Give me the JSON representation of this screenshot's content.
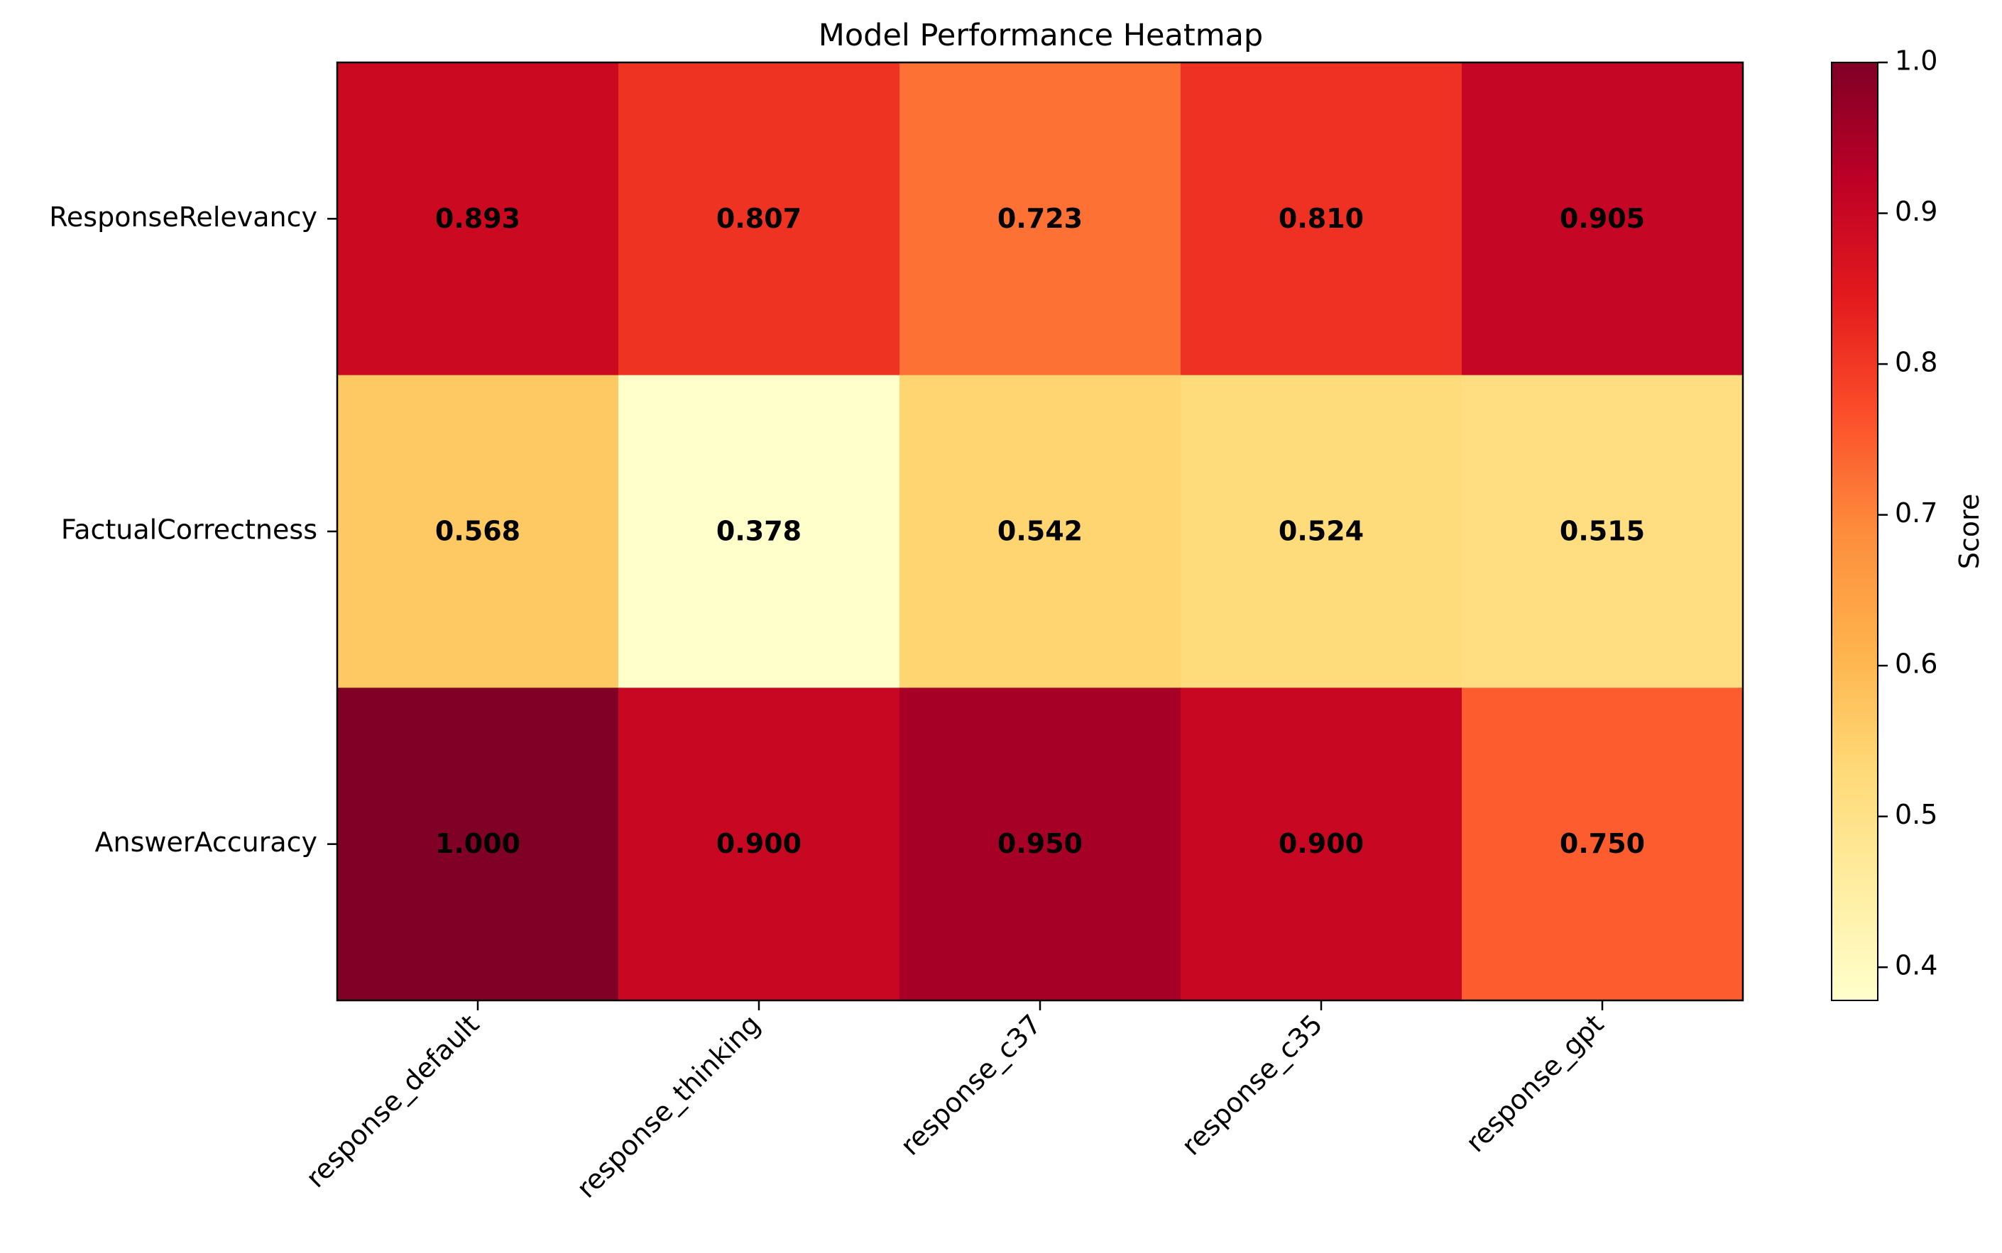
{
  "chart_data": {
    "type": "heatmap",
    "title": "Model Performance Heatmap",
    "rows": [
      "ResponseRelevancy",
      "FactualCorrectness",
      "AnswerAccuracy"
    ],
    "columns": [
      "response_default",
      "response_thinking",
      "response_c37",
      "response_c35",
      "response_gpt"
    ],
    "values": [
      [
        0.893,
        0.807,
        0.723,
        0.81,
        0.905
      ],
      [
        0.568,
        0.378,
        0.542,
        0.524,
        0.515
      ],
      [
        1.0,
        0.9,
        0.95,
        0.9,
        0.75
      ]
    ],
    "value_labels": [
      [
        "0.893",
        "0.807",
        "0.723",
        "0.810",
        "0.905"
      ],
      [
        "0.568",
        "0.378",
        "0.542",
        "0.524",
        "0.515"
      ],
      [
        "1.000",
        "0.900",
        "0.950",
        "0.900",
        "0.750"
      ]
    ],
    "colormap": "YlOrRd",
    "colorbar": {
      "label": "Score",
      "range": [
        0.378,
        1.0
      ],
      "ticks": [
        0.4,
        0.5,
        0.6,
        0.7,
        0.8,
        0.9,
        1.0
      ],
      "tick_labels": [
        "0.4",
        "0.5",
        "0.6",
        "0.7",
        "0.8",
        "0.9",
        "1.0"
      ]
    }
  }
}
